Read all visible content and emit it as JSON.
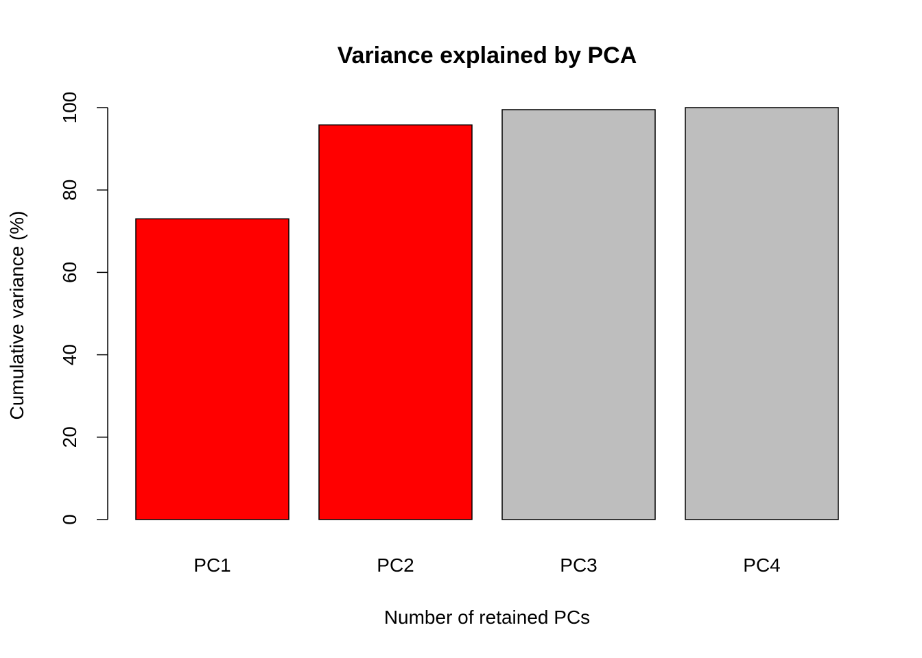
{
  "chart_data": {
    "type": "bar",
    "title": "Variance explained by PCA",
    "xlabel": "Number of retained PCs",
    "ylabel": "Cumulative variance (%)",
    "categories": [
      "PC1",
      "PC2",
      "PC3",
      "PC4"
    ],
    "values": [
      73.0,
      95.8,
      99.5,
      100.0
    ],
    "bar_colors": [
      "#ff0000",
      "#ff0000",
      "#bebebe",
      "#bebebe"
    ],
    "ylim": [
      0,
      100
    ],
    "yticks": [
      0,
      20,
      40,
      60,
      80,
      100
    ],
    "grid": false,
    "legend": "none"
  }
}
